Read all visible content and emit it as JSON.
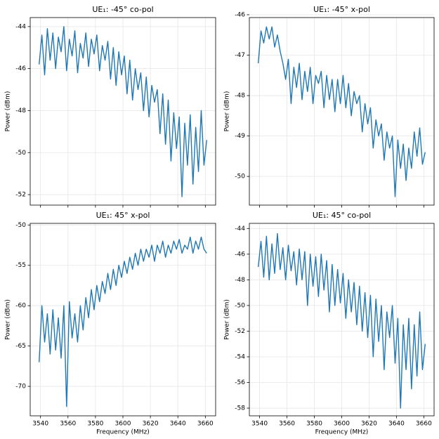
{
  "chart_data": [
    {
      "type": "line",
      "title": "UE₁: -45° co-pol",
      "ylabel": "Power (dBm)",
      "grid": true,
      "xlim": [
        3532.5,
        3667.5
      ],
      "xticks": [
        3540,
        3560,
        3580,
        3600,
        3620,
        3640,
        3660
      ],
      "ylim": [
        -52.5,
        -43.57
      ],
      "yticks": [
        -52,
        -50,
        -48,
        -46,
        -44
      ],
      "x": [
        3539,
        3541,
        3543,
        3545,
        3547,
        3549,
        3551,
        3553,
        3555,
        3557,
        3559,
        3561,
        3563,
        3565,
        3567,
        3569,
        3571,
        3573,
        3575,
        3577,
        3579,
        3581,
        3583,
        3585,
        3587,
        3589,
        3591,
        3593,
        3595,
        3597,
        3599,
        3601,
        3603,
        3605,
        3607,
        3609,
        3611,
        3613,
        3615,
        3617,
        3619,
        3621,
        3623,
        3625,
        3627,
        3629,
        3631,
        3633,
        3635,
        3637,
        3639,
        3641,
        3643,
        3645,
        3647,
        3649,
        3651,
        3653,
        3655,
        3657,
        3659,
        3661
      ],
      "series": [
        {
          "color": "#1f77b4",
          "values": [
            -45.8,
            -44.4,
            -46.3,
            -44.1,
            -45.6,
            -44.3,
            -46.0,
            -44.5,
            -45.2,
            -44.0,
            -46.1,
            -44.6,
            -45.4,
            -44.2,
            -46.2,
            -44.8,
            -45.5,
            -44.3,
            -45.9,
            -44.6,
            -45.3,
            -44.4,
            -46.1,
            -44.9,
            -45.6,
            -44.7,
            -46.5,
            -45.0,
            -46.8,
            -45.2,
            -46.3,
            -45.4,
            -47.2,
            -45.6,
            -47.5,
            -46.0,
            -47.0,
            -46.2,
            -48.0,
            -46.4,
            -48.3,
            -46.8,
            -47.6,
            -47.0,
            -49.1,
            -47.2,
            -49.6,
            -47.5,
            -50.4,
            -48.1,
            -49.8,
            -48.3,
            -52.1,
            -48.6,
            -50.6,
            -48.2,
            -51.5,
            -48.8,
            -50.9,
            -48.0,
            -50.6,
            -49.4
          ]
        }
      ]
    },
    {
      "type": "line",
      "title": "UE₁: -45° x-pol",
      "ylabel": "Power (dBm)",
      "grid": true,
      "xlim": [
        3532.5,
        3667.5
      ],
      "xticks": [
        3540,
        3560,
        3580,
        3600,
        3620,
        3640,
        3660
      ],
      "ylim": [
        -50.71,
        -46.07
      ],
      "yticks": [
        -50,
        -49,
        -48,
        -47,
        -46
      ],
      "x": [
        3539,
        3541,
        3543,
        3545,
        3547,
        3549,
        3551,
        3553,
        3555,
        3557,
        3559,
        3561,
        3563,
        3565,
        3567,
        3569,
        3571,
        3573,
        3575,
        3577,
        3579,
        3581,
        3583,
        3585,
        3587,
        3589,
        3591,
        3593,
        3595,
        3597,
        3599,
        3601,
        3603,
        3605,
        3607,
        3609,
        3611,
        3613,
        3615,
        3617,
        3619,
        3621,
        3623,
        3625,
        3627,
        3629,
        3631,
        3633,
        3635,
        3637,
        3639,
        3641,
        3643,
        3645,
        3647,
        3649,
        3651,
        3653,
        3655,
        3657,
        3659,
        3661
      ],
      "series": [
        {
          "color": "#1f77b4",
          "values": [
            -47.2,
            -46.4,
            -46.7,
            -46.3,
            -46.6,
            -46.3,
            -46.8,
            -46.5,
            -46.9,
            -47.2,
            -47.6,
            -47.1,
            -48.2,
            -47.3,
            -47.8,
            -47.2,
            -48.1,
            -47.4,
            -47.9,
            -47.3,
            -48.2,
            -47.5,
            -47.7,
            -47.4,
            -48.3,
            -47.5,
            -48.1,
            -47.6,
            -48.4,
            -47.6,
            -48.2,
            -47.5,
            -48.3,
            -47.7,
            -48.5,
            -47.9,
            -48.2,
            -48.0,
            -48.9,
            -48.2,
            -48.7,
            -48.3,
            -49.3,
            -48.6,
            -49.0,
            -48.7,
            -49.6,
            -48.9,
            -49.3,
            -49.0,
            -50.5,
            -49.1,
            -49.8,
            -49.2,
            -50.1,
            -49.3,
            -49.8,
            -48.9,
            -49.5,
            -48.8,
            -49.7,
            -49.4
          ]
        }
      ]
    },
    {
      "type": "line",
      "title": "UE₁: 45° x-pol",
      "xlabel": "Frequency (MHz)",
      "ylabel": "Power (dBm)",
      "grid": true,
      "xlim": [
        3532.5,
        3667.5
      ],
      "xticks": [
        3540,
        3560,
        3580,
        3600,
        3620,
        3640,
        3660
      ],
      "ylim": [
        -73.65,
        -49.8
      ],
      "yticks": [
        -70,
        -65,
        -60,
        -55,
        -50
      ],
      "x": [
        3539,
        3541,
        3543,
        3545,
        3547,
        3549,
        3551,
        3553,
        3555,
        3557,
        3559,
        3561,
        3563,
        3565,
        3567,
        3569,
        3571,
        3573,
        3575,
        3577,
        3579,
        3581,
        3583,
        3585,
        3587,
        3589,
        3591,
        3593,
        3595,
        3597,
        3599,
        3601,
        3603,
        3605,
        3607,
        3609,
        3611,
        3613,
        3615,
        3617,
        3619,
        3621,
        3623,
        3625,
        3627,
        3629,
        3631,
        3633,
        3635,
        3637,
        3639,
        3641,
        3643,
        3645,
        3647,
        3649,
        3651,
        3653,
        3655,
        3657,
        3659,
        3661
      ],
      "series": [
        {
          "color": "#1f77b4",
          "values": [
            -67.0,
            -60.0,
            -64.5,
            -61.0,
            -66.0,
            -60.5,
            -65.5,
            -61.5,
            -66.5,
            -60.0,
            -72.5,
            -59.5,
            -64.0,
            -61.0,
            -64.5,
            -60.0,
            -63.0,
            -59.0,
            -61.5,
            -58.0,
            -60.5,
            -57.5,
            -59.5,
            -57.0,
            -58.5,
            -56.0,
            -58.0,
            -55.5,
            -57.5,
            -55.0,
            -56.5,
            -54.5,
            -56.0,
            -54.0,
            -55.5,
            -53.5,
            -55.0,
            -53.0,
            -54.5,
            -53.0,
            -54.0,
            -52.5,
            -54.5,
            -52.5,
            -53.5,
            -52.0,
            -54.0,
            -52.5,
            -53.5,
            -52.0,
            -53.0,
            -51.8,
            -53.5,
            -52.5,
            -53.0,
            -51.5,
            -53.5,
            -52.0,
            -53.0,
            -51.5,
            -53.0,
            -53.5
          ]
        }
      ]
    },
    {
      "type": "line",
      "title": "UE₁: 45° co-pol",
      "xlabel": "Frequency (MHz)",
      "ylabel": "Power (dBm)",
      "grid": true,
      "xlim": [
        3532.5,
        3667.5
      ],
      "xticks": [
        3540,
        3560,
        3580,
        3600,
        3620,
        3640,
        3660
      ],
      "ylim": [
        -58.6,
        -43.6
      ],
      "yticks": [
        -58,
        -56,
        -54,
        -52,
        -50,
        -48,
        -46,
        -44
      ],
      "x": [
        3539,
        3541,
        3543,
        3545,
        3547,
        3549,
        3551,
        3553,
        3555,
        3557,
        3559,
        3561,
        3563,
        3565,
        3567,
        3569,
        3571,
        3573,
        3575,
        3577,
        3579,
        3581,
        3583,
        3585,
        3587,
        3589,
        3591,
        3593,
        3595,
        3597,
        3599,
        3601,
        3603,
        3605,
        3607,
        3609,
        3611,
        3613,
        3615,
        3617,
        3619,
        3621,
        3623,
        3625,
        3627,
        3629,
        3631,
        3633,
        3635,
        3637,
        3639,
        3641,
        3643,
        3645,
        3647,
        3649,
        3651,
        3653,
        3655,
        3657,
        3659,
        3661
      ],
      "series": [
        {
          "color": "#1f77b4",
          "values": [
            -47.0,
            -45.0,
            -47.8,
            -44.6,
            -48.0,
            -45.2,
            -47.5,
            -44.4,
            -47.2,
            -45.5,
            -48.0,
            -45.3,
            -47.3,
            -45.8,
            -48.4,
            -45.6,
            -48.0,
            -45.8,
            -50.0,
            -46.0,
            -48.5,
            -46.2,
            -49.3,
            -46.0,
            -48.8,
            -46.5,
            -50.5,
            -46.8,
            -50.0,
            -47.2,
            -49.8,
            -47.5,
            -51.0,
            -48.0,
            -50.5,
            -48.2,
            -51.5,
            -48.5,
            -52.0,
            -49.0,
            -52.5,
            -49.2,
            -54.0,
            -49.5,
            -52.8,
            -50.0,
            -55.0,
            -50.5,
            -52.5,
            -50.0,
            -54.5,
            -51.0,
            -58.0,
            -51.5,
            -55.0,
            -51.0,
            -56.5,
            -51.5,
            -55.5,
            -50.5,
            -55.0,
            -53.0
          ]
        }
      ]
    }
  ]
}
